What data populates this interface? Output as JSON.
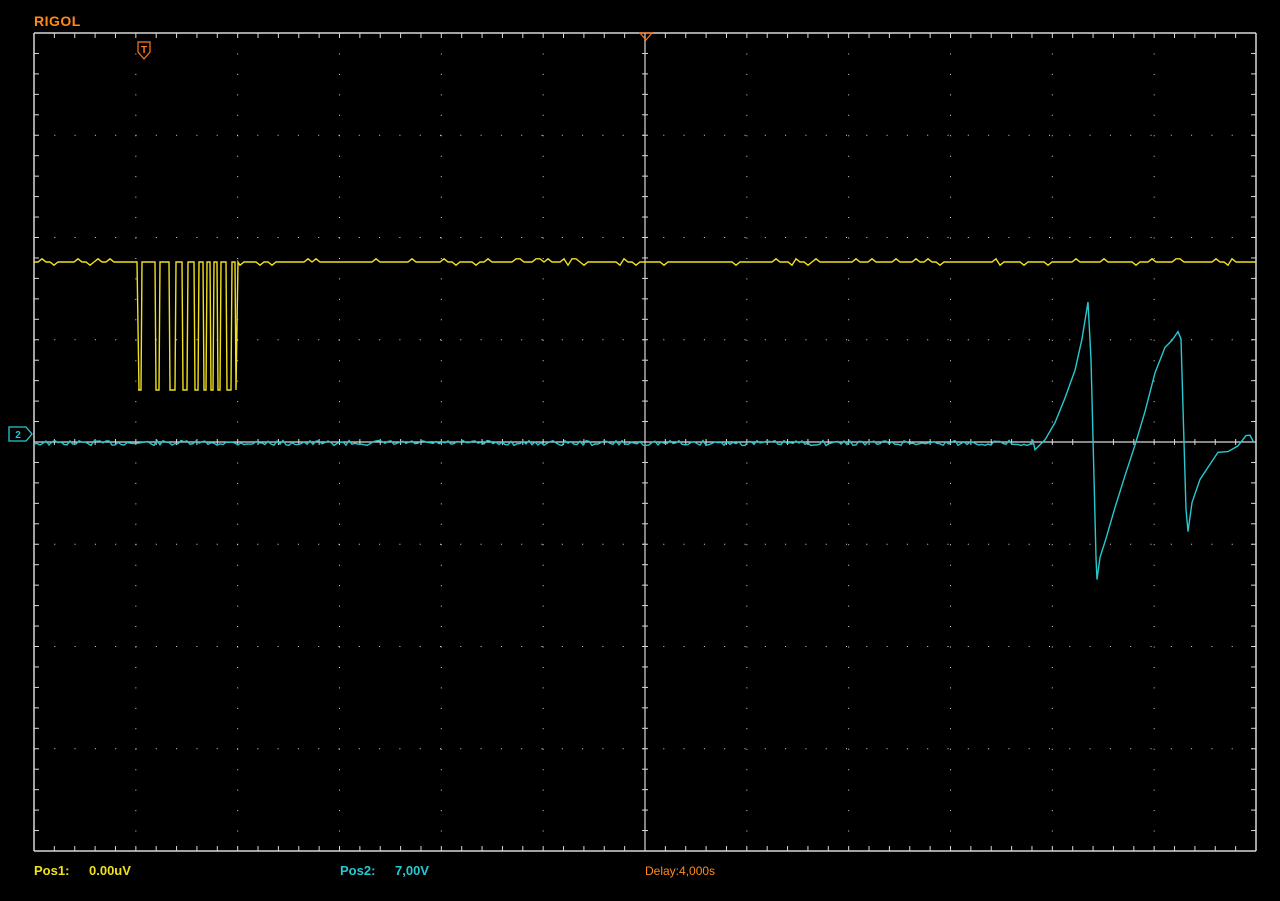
{
  "brand": "RIGOL",
  "colors": {
    "background": "#000000",
    "grid": "#d8d8d8",
    "brand": "#ff8a1a",
    "trigger_marker": "#ff7a1a",
    "ch1": "#f0e020",
    "ch2": "#28c8d0",
    "delay": "#ff8a1a"
  },
  "screen": {
    "h_divisions": 12,
    "v_divisions": 8
  },
  "markers": {
    "trigger": {
      "label": "T",
      "icon": "trigger-position-marker"
    },
    "ch2_ground": {
      "label": "2",
      "icon": "channel-ground-marker"
    },
    "time_reference": {
      "icon": "time-reference-marker"
    }
  },
  "channels": [
    {
      "id": "ch1",
      "name": "Pos1",
      "value": "0.00uV"
    },
    {
      "id": "ch2",
      "name": "Pos2",
      "value": "7,00V"
    }
  ],
  "status": {
    "pos1_label": "Pos1:",
    "pos1_value": "0.00uV",
    "pos2_label": "Pos2:",
    "pos2_value": "7,00V",
    "delay": "Delay:4,000s"
  }
}
